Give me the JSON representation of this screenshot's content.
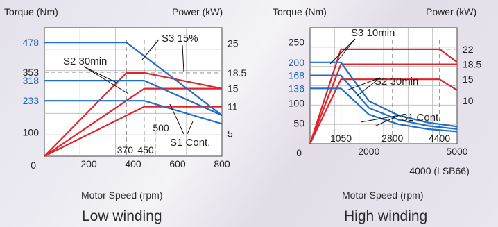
{
  "chart_data": [
    {
      "type": "line",
      "caption": "Low winding",
      "xlabel": "Motor Speed (rpm)",
      "y_left_label": "Torque (Nm)",
      "y_right_label": "Power (kW)",
      "xlim": [
        0,
        800
      ],
      "torque_lim": [
        0,
        540
      ],
      "power_lim": [
        0,
        28.5
      ],
      "x_ticks": [
        "200",
        "400",
        "600",
        "800"
      ],
      "x_ticks_bottom_left": "0",
      "left_ticks_black": [
        "100",
        "353"
      ],
      "left_ticks_blue": [
        "233",
        "318",
        "478"
      ],
      "right_ticks": [
        "5",
        "11",
        "15",
        "18.5",
        "25"
      ],
      "speed_markers": [
        "370",
        "450",
        "500"
      ],
      "torque_series": [
        {
          "name": "S3 15%",
          "points": [
            [
              0,
              478
            ],
            [
              370,
              478
            ],
            [
              800,
              172
            ]
          ]
        },
        {
          "name": "S2 30min",
          "points": [
            [
              0,
              318
            ],
            [
              450,
              318
            ],
            [
              800,
              172
            ]
          ]
        },
        {
          "name": "S1 Cont.",
          "points": [
            [
              0,
              233
            ],
            [
              450,
              233
            ],
            [
              800,
              136
            ]
          ]
        }
      ],
      "power_series": [
        {
          "name": "S3 15%",
          "points": [
            [
              0,
              0
            ],
            [
              370,
              18.5
            ],
            [
              450,
              18.5
            ],
            [
              800,
              15
            ]
          ]
        },
        {
          "name": "S2 30min",
          "points": [
            [
              0,
              0
            ],
            [
              450,
              15
            ],
            [
              800,
              15
            ]
          ]
        },
        {
          "name": "S1 Cont.",
          "points": [
            [
              0,
              0
            ],
            [
              450,
              11
            ],
            [
              800,
              11
            ]
          ]
        }
      ],
      "annotations": [
        "S3 15%",
        "S2 30min",
        "S1 Cont."
      ]
    },
    {
      "type": "line",
      "caption": "High winding",
      "xlabel": "Motor Speed (rpm)",
      "y_left_label": "Torque (Nm)",
      "y_right_label": "Power (kW)",
      "xlim": [
        0,
        5000
      ],
      "torque_lim": [
        0,
        285
      ],
      "power_lim": [
        0,
        27
      ],
      "x_ticks": [
        "2000",
        "5000"
      ],
      "x_ticks_bottom_left": "0",
      "left_ticks_black": [
        "50",
        "100",
        "250"
      ],
      "left_ticks_blue": [
        "136",
        "168",
        "200"
      ],
      "right_ticks": [
        "10",
        "15",
        "18.5",
        "22"
      ],
      "speed_markers": [
        "1050",
        "2800",
        "4400"
      ],
      "speed_note": "4000 (LSB66)",
      "torque_series": [
        {
          "name": "S3 10min",
          "points": [
            [
              0,
              200
            ],
            [
              1050,
              200
            ],
            [
              2000,
              105
            ],
            [
              3000,
              70
            ],
            [
              4000,
              52
            ],
            [
              5000,
              42
            ]
          ]
        },
        {
          "name": "S2 30min",
          "points": [
            [
              0,
              168
            ],
            [
              1050,
              168
            ],
            [
              2000,
              88
            ],
            [
              3000,
              59
            ],
            [
              4000,
              44
            ],
            [
              5000,
              36
            ]
          ]
        },
        {
          "name": "S1 Cont.",
          "points": [
            [
              0,
              136
            ],
            [
              1050,
              136
            ],
            [
              2000,
              72
            ],
            [
              3000,
              48
            ],
            [
              4000,
              36
            ],
            [
              5000,
              30
            ]
          ]
        }
      ],
      "power_series": [
        {
          "name": "S3 10min",
          "points": [
            [
              0,
              0
            ],
            [
              1050,
              22
            ],
            [
              4400,
              22
            ],
            [
              5000,
              19
            ]
          ]
        },
        {
          "name": "S2 30min",
          "points": [
            [
              0,
              0
            ],
            [
              1050,
              18.5
            ],
            [
              5000,
              18.5
            ]
          ]
        },
        {
          "name": "S1 Cont.",
          "points": [
            [
              0,
              0
            ],
            [
              1050,
              15
            ],
            [
              4400,
              15
            ],
            [
              5000,
              12.5
            ]
          ]
        }
      ],
      "annotations": [
        "S3 10min",
        "S2 30min",
        "S1 Cont."
      ]
    }
  ],
  "colors": {
    "torque": "#1f6fc6",
    "power": "#e0242b",
    "tick_blue": "#1e63b5",
    "grid": "#b8b8b8",
    "ref": "#9a9a9a",
    "text": "#222222"
  }
}
